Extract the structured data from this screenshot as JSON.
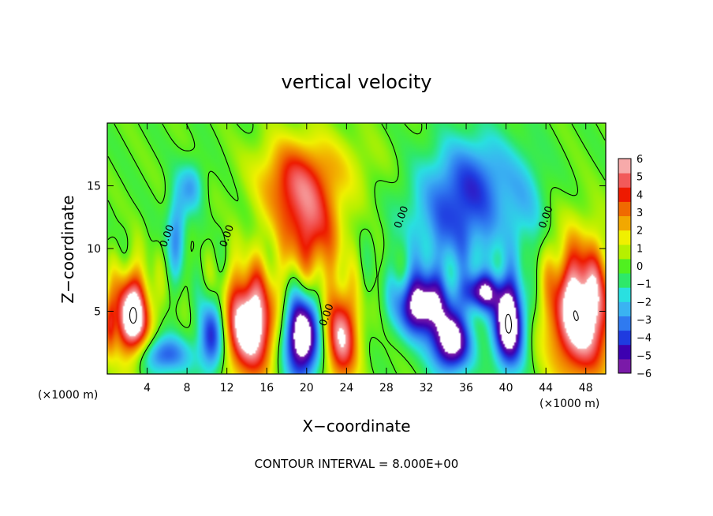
{
  "chart_data": {
    "type": "heatmap",
    "title": "vertical velocity",
    "xlabel": "X−coordinate",
    "ylabel": "Z−coordinate",
    "x_unit_label_left": "(×1000 m)",
    "x_unit_label_right": "(×1000 m)",
    "footer": "CONTOUR INTERVAL = 8.000E+00",
    "xlim": [
      0,
      50
    ],
    "ylim": [
      0,
      20
    ],
    "x_ticks": [
      4,
      8,
      12,
      16,
      20,
      24,
      28,
      32,
      36,
      40,
      44,
      48
    ],
    "x_tick_labels": [
      "4",
      "8",
      "12",
      "16",
      "20",
      "24",
      "28",
      "32",
      "36",
      "40",
      "44",
      "48"
    ],
    "y_ticks": [
      5,
      10,
      15
    ],
    "y_tick_labels": [
      "5",
      "10",
      "15"
    ],
    "colorbar": {
      "min": -6,
      "max": 6,
      "ticks": [
        6,
        5,
        4,
        3,
        2,
        1,
        0,
        -1,
        -2,
        -3,
        -4,
        -5,
        -6
      ],
      "tick_labels": [
        "6",
        "5",
        "4",
        "3",
        "2",
        "1",
        "0",
        "−1",
        "−2",
        "−3",
        "−4",
        "−5",
        "−6"
      ],
      "colors": [
        "#7a1aa8",
        "#3d00b0",
        "#1f3be0",
        "#2f7af0",
        "#3ab3f2",
        "#29e0e0",
        "#2ee86a",
        "#50f020",
        "#b6f000",
        "#f0f000",
        "#f2a800",
        "#f06a00",
        "#ee1a00",
        "#f25a5a",
        "#f7aaaa"
      ]
    },
    "contour_labels": [
      {
        "text": "0.00",
        "x": 6.0,
        "y": 11.0
      },
      {
        "text": "0.00",
        "x": 12.0,
        "y": 11.0
      },
      {
        "text": "0.00",
        "x": 22.0,
        "y": 4.7
      },
      {
        "text": "0.00",
        "x": 29.5,
        "y": 12.5
      },
      {
        "text": "0.00",
        "x": 44.0,
        "y": 12.5
      }
    ],
    "cells": [
      {
        "x": 2.5,
        "z": 4.5,
        "rx": 1.8,
        "rz": 3.5,
        "w": 8
      },
      {
        "x": 5.5,
        "z": 1.5,
        "rx": 2.8,
        "rz": 1.6,
        "w": -4
      },
      {
        "x": 7.0,
        "z": 11.5,
        "rx": 1.0,
        "rz": 3.5,
        "w": -3
      },
      {
        "x": 8.5,
        "z": 15.0,
        "rx": 1.2,
        "rz": 2.0,
        "w": -2.5
      },
      {
        "x": 10.5,
        "z": 3.0,
        "rx": 1.3,
        "rz": 3.0,
        "w": -5
      },
      {
        "x": 14.3,
        "z": 4.0,
        "rx": 2.5,
        "rz": 4.2,
        "w": 8
      },
      {
        "x": 19.5,
        "z": 3.0,
        "rx": 1.8,
        "rz": 3.5,
        "w": -8
      },
      {
        "x": 23.5,
        "z": 3.0,
        "rx": 1.7,
        "rz": 3.8,
        "w": 6
      },
      {
        "x": 20.5,
        "z": 11.5,
        "rx": 3.0,
        "rz": 4.5,
        "w": 4.5
      },
      {
        "x": 18.0,
        "z": 15.0,
        "rx": 3.0,
        "rz": 3.5,
        "w": 2.5
      },
      {
        "x": 21.0,
        "z": 16.5,
        "rx": 6.0,
        "rz": 3.0,
        "w": 1.6
      },
      {
        "x": 31.5,
        "z": 5.5,
        "rx": 2.5,
        "rz": 2.5,
        "w": -7
      },
      {
        "x": 34.5,
        "z": 2.5,
        "rx": 2.0,
        "rz": 2.5,
        "w": -7
      },
      {
        "x": 35.0,
        "z": 12.0,
        "rx": 5.0,
        "rz": 4.5,
        "w": -3.5
      },
      {
        "x": 37.0,
        "z": 16.0,
        "rx": 4.5,
        "rz": 3.5,
        "w": -2.5
      },
      {
        "x": 40.3,
        "z": 4.0,
        "rx": 1.6,
        "rz": 3.5,
        "w": -8
      },
      {
        "x": 37.5,
        "z": 6.5,
        "rx": 2.0,
        "rz": 1.5,
        "w": -5
      },
      {
        "x": 42.0,
        "z": 13.0,
        "rx": 2.0,
        "rz": 4.0,
        "w": -1.5
      },
      {
        "x": 47.5,
        "z": 5.0,
        "rx": 3.2,
        "rz": 5.3,
        "w": 8
      },
      {
        "x": 0.2,
        "z": 4.0,
        "rx": 0.6,
        "rz": 2.5,
        "w": 3
      }
    ]
  }
}
